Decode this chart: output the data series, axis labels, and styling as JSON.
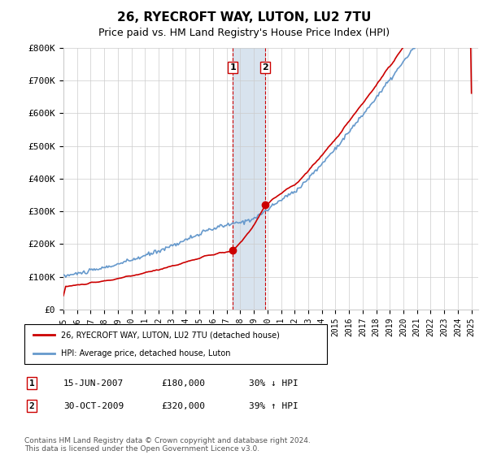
{
  "title": "26, RYECROFT WAY, LUTON, LU2 7TU",
  "subtitle": "Price paid vs. HM Land Registry's House Price Index (HPI)",
  "ylim": [
    0,
    800000
  ],
  "yticks": [
    0,
    100000,
    200000,
    300000,
    400000,
    500000,
    600000,
    700000,
    800000
  ],
  "ytick_labels": [
    "£0",
    "£100K",
    "£200K",
    "£300K",
    "£400K",
    "£500K",
    "£600K",
    "£700K",
    "£800K"
  ],
  "transaction1": {
    "date_num": 2007.46,
    "price": 180000,
    "label": "1",
    "date_str": "15-JUN-2007",
    "pct": "30% ↓ HPI"
  },
  "transaction2": {
    "date_num": 2009.83,
    "price": 320000,
    "label": "2",
    "date_str": "30-OCT-2009",
    "pct": "39% ↑ HPI"
  },
  "property_color": "#cc0000",
  "hpi_color": "#6699cc",
  "shade_color": "#c8d8e8",
  "grid_color": "#cccccc",
  "legend_label1": "26, RYECROFT WAY, LUTON, LU2 7TU (detached house)",
  "legend_label2": "HPI: Average price, detached house, Luton",
  "footnote": "Contains HM Land Registry data © Crown copyright and database right 2024.\nThis data is licensed under the Open Government Licence v3.0.",
  "table_rows": [
    {
      "num": "1",
      "date": "15-JUN-2007",
      "price": "£180,000",
      "pct": "30% ↓ HPI"
    },
    {
      "num": "2",
      "date": "30-OCT-2009",
      "price": "£320,000",
      "pct": "39% ↑ HPI"
    }
  ]
}
